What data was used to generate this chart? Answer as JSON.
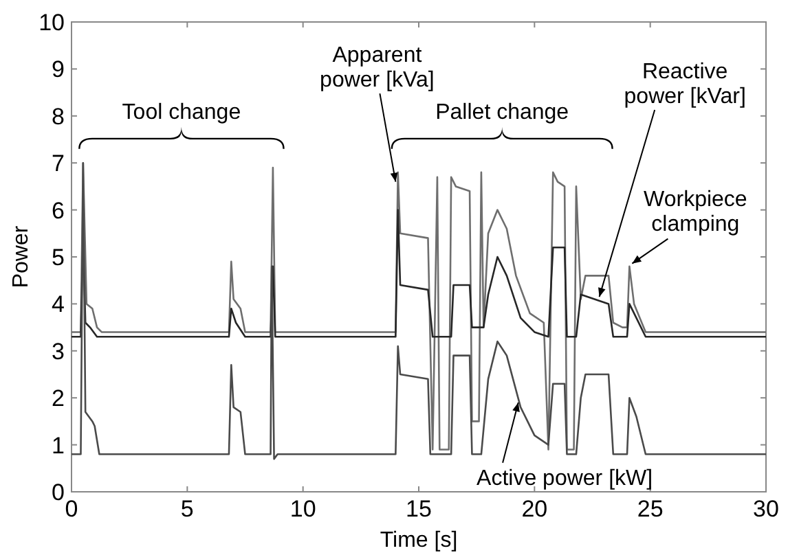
{
  "chart_data": {
    "type": "line",
    "xlabel": "Time [s]",
    "ylabel": "Power",
    "xlim": [
      0,
      30
    ],
    "ylim": [
      0,
      10
    ],
    "xticks": [
      0,
      5,
      10,
      15,
      20,
      25,
      30
    ],
    "yticks": [
      0,
      1,
      2,
      3,
      4,
      5,
      6,
      7,
      8,
      9,
      10
    ],
    "grid": false,
    "line_style": "solid",
    "series": [
      {
        "name": "Apparent power [kVa]",
        "color": "#6e6e6e",
        "x": [
          0,
          0.4,
          0.5,
          0.65,
          0.9,
          1.1,
          1.3,
          6.8,
          6.9,
          7.0,
          7.3,
          7.5,
          8.6,
          8.7,
          8.8,
          14.0,
          14.1,
          14.2,
          15.4,
          15.6,
          15.8,
          15.9,
          16.3,
          16.4,
          16.6,
          17.2,
          17.3,
          17.6,
          17.7,
          17.8,
          18.0,
          18.4,
          18.8,
          19.2,
          19.8,
          20.4,
          20.6,
          20.8,
          21.0,
          21.3,
          21.4,
          21.7,
          21.8,
          22.0,
          22.2,
          23.2,
          23.4,
          23.8,
          24.0,
          24.1,
          24.3,
          24.8,
          30
        ],
        "values": [
          3.4,
          3.4,
          7.0,
          4.0,
          3.9,
          3.5,
          3.4,
          3.4,
          4.9,
          4.1,
          3.9,
          3.4,
          3.4,
          6.9,
          3.4,
          3.4,
          6.8,
          5.5,
          5.4,
          0.9,
          6.7,
          0.9,
          0.9,
          6.7,
          6.5,
          6.4,
          1.5,
          1.5,
          6.8,
          3.5,
          5.5,
          6.0,
          5.6,
          4.6,
          3.8,
          3.6,
          0.9,
          6.8,
          6.6,
          6.5,
          0.9,
          0.9,
          6.5,
          4.1,
          4.6,
          4.6,
          3.6,
          3.5,
          3.5,
          4.8,
          4.0,
          3.4,
          3.4
        ]
      },
      {
        "name": "Reactive power [kVar]",
        "color": "#262626",
        "x": [
          0,
          0.4,
          0.5,
          0.6,
          0.8,
          1.1,
          6.8,
          6.9,
          7.1,
          7.5,
          8.6,
          8.7,
          8.8,
          14.0,
          14.1,
          14.2,
          15.4,
          15.6,
          15.8,
          16.4,
          16.5,
          17.2,
          17.3,
          17.8,
          18.0,
          18.4,
          18.8,
          19.4,
          20.0,
          20.6,
          20.8,
          21.3,
          21.4,
          21.8,
          22.0,
          23.2,
          23.4,
          24.0,
          24.1,
          24.4,
          24.8,
          30
        ],
        "values": [
          3.3,
          3.3,
          5.5,
          3.6,
          3.5,
          3.3,
          3.3,
          3.9,
          3.6,
          3.3,
          3.3,
          4.8,
          3.3,
          3.3,
          6.0,
          4.4,
          4.3,
          3.3,
          3.3,
          3.3,
          4.4,
          4.4,
          3.5,
          3.5,
          4.2,
          5.0,
          4.6,
          3.7,
          3.4,
          3.3,
          5.2,
          5.2,
          3.3,
          3.3,
          4.2,
          4.0,
          3.3,
          3.3,
          4.0,
          3.7,
          3.3,
          3.3
        ]
      },
      {
        "name": "Active power [kW]",
        "color": "#4a4a4a",
        "x": [
          0,
          0.4,
          0.5,
          0.6,
          0.9,
          1.0,
          1.2,
          6.8,
          6.9,
          7.0,
          7.3,
          7.5,
          8.6,
          8.65,
          8.75,
          8.9,
          14.0,
          14.1,
          14.2,
          15.4,
          15.5,
          15.8,
          16.4,
          16.5,
          17.2,
          17.3,
          17.7,
          18.0,
          18.4,
          18.8,
          19.4,
          20.0,
          20.6,
          20.8,
          21.3,
          21.4,
          21.8,
          22.0,
          22.2,
          23.2,
          23.4,
          24.0,
          24.1,
          24.4,
          24.8,
          30
        ],
        "values": [
          0.8,
          0.8,
          7.0,
          1.7,
          1.5,
          1.4,
          0.8,
          0.8,
          2.7,
          1.8,
          1.7,
          0.8,
          0.8,
          4.8,
          0.7,
          0.8,
          0.8,
          3.1,
          2.5,
          2.4,
          0.8,
          0.8,
          0.8,
          2.9,
          2.9,
          0.8,
          0.8,
          2.4,
          3.2,
          2.9,
          1.8,
          1.2,
          1.0,
          2.3,
          2.3,
          0.8,
          0.8,
          2.0,
          2.5,
          2.5,
          0.8,
          0.8,
          2.0,
          1.6,
          0.8,
          0.8
        ]
      }
    ],
    "annotations": [
      "Tool change",
      "Pallet change",
      {
        "text": "Workpiece clamping",
        "x": 24.1,
        "y": 4.8
      }
    ]
  }
}
